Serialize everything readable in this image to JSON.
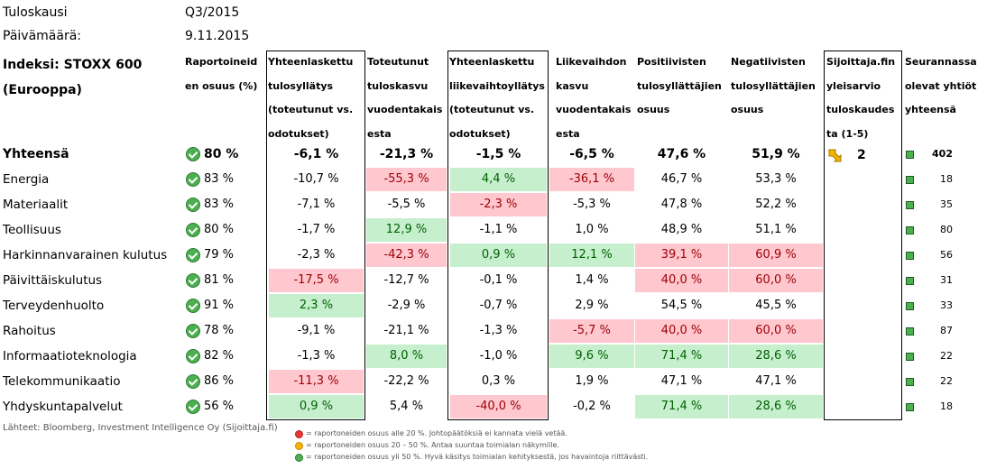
{
  "meta": {
    "period_label": "Tuloskausi",
    "period_value": "Q3/2015",
    "date_label": "Päivämäärä:",
    "date_value": "9.11.2015"
  },
  "index_title": [
    "Indeksi: STOXX 600",
    "(Eurooppa)"
  ],
  "headers": [
    [
      "Raportoineid",
      "en osuus (%)"
    ],
    [
      "Yhteenlaskettu",
      "tulosyllätys",
      "(toteutunut vs.",
      "odotukset)"
    ],
    [
      "Toteutunut",
      "tuloskasvu",
      "vuodentakais",
      "esta"
    ],
    [
      "Yhteenlaskettu",
      "liikevaihtoyllätys",
      "(toteutunut vs.",
      "odotukset)"
    ],
    [
      "Liikevaihdon",
      "kasvu",
      "vuodentakais",
      "esta"
    ],
    [
      "Positiivisten",
      "tulosyllättäjien",
      "osuus"
    ],
    [
      "Negatiivisten",
      "tulosyllättäjien",
      "osuus"
    ],
    [
      "Sijoittaja.fin",
      "yleisarvio",
      "tuloskaudes",
      "ta (1-5)"
    ],
    [
      "Seurannassa",
      "olevat yhtiöt",
      "yhteensä"
    ]
  ],
  "rows": [
    {
      "name": "Yhteensä",
      "reported": "80 %",
      "earn_surprise": "-6,1 %",
      "earn_growth": "-21,3 %",
      "rev_surprise": "-1,5 %",
      "rev_growth": "-6,5 %",
      "pos": "47,6 %",
      "neg": "51,9 %",
      "count": "402",
      "colors": [
        "",
        "",
        "",
        "",
        "",
        ""
      ]
    },
    {
      "name": "Energia",
      "reported": "83 %",
      "earn_surprise": "-10,7 %",
      "earn_growth": "-55,3 %",
      "rev_surprise": "4,4 %",
      "rev_growth": "-36,1 %",
      "pos": "46,7 %",
      "neg": "53,3 %",
      "count": "18",
      "colors": [
        "",
        "red",
        "green",
        "red",
        "",
        ""
      ]
    },
    {
      "name": "Materiaalit",
      "reported": "83 %",
      "earn_surprise": "-7,1 %",
      "earn_growth": "-5,5 %",
      "rev_surprise": "-2,3 %",
      "rev_growth": "-5,3 %",
      "pos": "47,8 %",
      "neg": "52,2 %",
      "count": "35",
      "colors": [
        "",
        "",
        "red",
        "",
        "",
        ""
      ]
    },
    {
      "name": "Teollisuus",
      "reported": "80 %",
      "earn_surprise": "-1,7 %",
      "earn_growth": "12,9 %",
      "rev_surprise": "-1,1 %",
      "rev_growth": "1,0 %",
      "pos": "48,9 %",
      "neg": "51,1 %",
      "count": "80",
      "colors": [
        "",
        "green",
        "",
        "",
        "",
        ""
      ]
    },
    {
      "name": "Harkinnanvarainen kulutus",
      "reported": "79 %",
      "earn_surprise": "-2,3 %",
      "earn_growth": "-42,3 %",
      "rev_surprise": "0,9 %",
      "rev_growth": "12,1 %",
      "pos": "39,1 %",
      "neg": "60,9 %",
      "count": "56",
      "colors": [
        "",
        "red",
        "green",
        "green",
        "red",
        "red"
      ]
    },
    {
      "name": "Päivittäiskulutus",
      "reported": "81 %",
      "earn_surprise": "-17,5 %",
      "earn_growth": "-12,7 %",
      "rev_surprise": "-0,1 %",
      "rev_growth": "1,4 %",
      "pos": "40,0 %",
      "neg": "60,0 %",
      "count": "31",
      "colors": [
        "red",
        "",
        "",
        "",
        "red",
        "red"
      ]
    },
    {
      "name": "Terveydenhuolto",
      "reported": "91 %",
      "earn_surprise": "2,3 %",
      "earn_growth": "-2,9 %",
      "rev_surprise": "-0,7 %",
      "rev_growth": "2,9 %",
      "pos": "54,5 %",
      "neg": "45,5 %",
      "count": "33",
      "colors": [
        "green",
        "",
        "",
        "",
        "",
        ""
      ]
    },
    {
      "name": "Rahoitus",
      "reported": "78 %",
      "earn_surprise": "-9,1 %",
      "earn_growth": "-21,1 %",
      "rev_surprise": "-1,3 %",
      "rev_growth": "-5,7 %",
      "pos": "40,0 %",
      "neg": "60,0 %",
      "count": "87",
      "colors": [
        "",
        "",
        "",
        "red",
        "red",
        "red"
      ]
    },
    {
      "name": "Informaatioteknologia",
      "reported": "82 %",
      "earn_surprise": "-1,3 %",
      "earn_growth": "8,0 %",
      "rev_surprise": "-1,0 %",
      "rev_growth": "9,6 %",
      "pos": "71,4 %",
      "neg": "28,6 %",
      "count": "22",
      "colors": [
        "",
        "green",
        "",
        "green",
        "green",
        "green"
      ]
    },
    {
      "name": "Telekommunikaatio",
      "reported": "86 %",
      "earn_surprise": "-11,3 %",
      "earn_growth": "-22,2 %",
      "rev_surprise": "0,3 %",
      "rev_growth": "1,9 %",
      "pos": "47,1 %",
      "neg": "47,1 %",
      "count": "22",
      "colors": [
        "red",
        "",
        "",
        "",
        "",
        ""
      ]
    },
    {
      "name": "Yhdyskuntapalvelut",
      "reported": "56 %",
      "earn_surprise": "0,9 %",
      "earn_growth": "5,4 %",
      "rev_surprise": "-40,0 %",
      "rev_growth": "-0,2 %",
      "pos": "71,4 %",
      "neg": "28,6 %",
      "count": "18",
      "colors": [
        "green",
        "",
        "red",
        "",
        "green",
        "green"
      ]
    }
  ],
  "overall_rating": "2",
  "source": "Lähteet: Bloomberg, Investment Intelligence Oy (Sijoittaja.fi)",
  "legend": [
    "= raportoneiden osuus alle 20 %. Johtopäätöksiä ei kannata vielä vetää.",
    "= raportoneiden osuus 20 – 50 %. Antaa suuntaa toimialan näkymille.",
    "= raportoneiden osuus yli 50 %. Hyvä käsitys toimialan kehityksestä, jos havaintoja riittävästi."
  ],
  "colors": {
    "red_bg": "#ffc7ce",
    "red_text": "#9c0006",
    "green_bg": "#c6efce",
    "green_text": "#006100"
  },
  "icons": {
    "status": "check-circle-icon",
    "rating": "arrow-down-right-icon",
    "count": "green-square-icon"
  }
}
